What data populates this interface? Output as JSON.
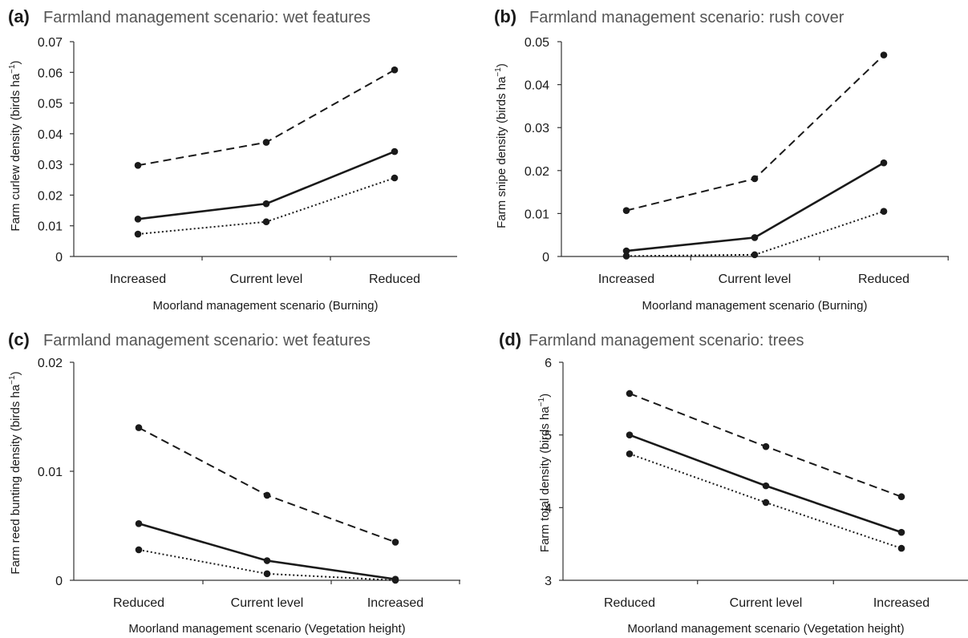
{
  "chart_data": [
    {
      "type": "line",
      "panel": "(a)",
      "title": "Farmland management scenario: wet features",
      "xlabel": "Moorland management scenario (Burning)",
      "ylabel": "Farm curlew density (birds ha",
      "ylabel_sup": "−1",
      "ylabel_close": ")",
      "categories": [
        "Increased",
        "Current level",
        "Reduced"
      ],
      "ylim": [
        0,
        0.07
      ],
      "yticks": [
        0,
        0.01,
        0.02,
        0.03,
        0.04,
        0.05,
        0.06,
        0.07
      ],
      "ytick_labels": [
        "0",
        "0.01",
        "0.02",
        "0.03",
        "0.04",
        "0.05",
        "0.06",
        "0.07"
      ],
      "series": [
        {
          "style": "dashed",
          "values": [
            0.0297,
            0.0372,
            0.0608
          ]
        },
        {
          "style": "solid",
          "values": [
            0.0122,
            0.0172,
            0.0342
          ]
        },
        {
          "style": "dotted",
          "values": [
            0.0073,
            0.0113,
            0.0256
          ]
        }
      ]
    },
    {
      "type": "line",
      "panel": "(b)",
      "title": "Farmland management scenario: rush cover",
      "xlabel": "Moorland management scenario (Burning)",
      "ylabel": "Farm snipe density (birds ha",
      "ylabel_sup": "−1",
      "ylabel_close": ")",
      "categories": [
        "Increased",
        "Current level",
        "Reduced"
      ],
      "ylim": [
        0,
        0.05
      ],
      "yticks": [
        0,
        0.01,
        0.02,
        0.03,
        0.04,
        0.05
      ],
      "ytick_labels": [
        "0",
        "0.01",
        "0.02",
        "0.03",
        "0.04",
        "0.05"
      ],
      "series": [
        {
          "style": "dashed",
          "values": [
            0.0107,
            0.0181,
            0.0469
          ]
        },
        {
          "style": "solid",
          "values": [
            0.0013,
            0.0044,
            0.0218
          ]
        },
        {
          "style": "dotted",
          "values": [
            0.0001,
            0.0004,
            0.0105
          ]
        }
      ]
    },
    {
      "type": "line",
      "panel": "(c)",
      "title": "Farmland management scenario: wet features",
      "xlabel": "Moorland management scenario (Vegetation height)",
      "ylabel": "Farm reed bunting density (birds ha",
      "ylabel_sup": "−1",
      "ylabel_close": ")",
      "categories": [
        "Reduced",
        "Current level",
        "Increased"
      ],
      "ylim": [
        0,
        0.02
      ],
      "yticks": [
        0,
        0.01,
        0.02
      ],
      "ytick_labels": [
        "0",
        "0.01",
        "0.02"
      ],
      "series": [
        {
          "style": "dashed",
          "values": [
            0.014,
            0.0078,
            0.0035
          ]
        },
        {
          "style": "solid",
          "values": [
            0.0052,
            0.0018,
            0.0001
          ]
        },
        {
          "style": "dotted",
          "values": [
            0.0028,
            0.0006,
            0.0
          ]
        }
      ]
    },
    {
      "type": "line",
      "panel": "(d)",
      "title": "Farmland management scenario: trees",
      "xlabel": "Moorland management scenario (Vegetation height)",
      "ylabel": "Farm total density (birds ha",
      "ylabel_sup": "−1",
      "ylabel_close": ")",
      "categories": [
        "Reduced",
        "Current level",
        "Increased"
      ],
      "ylim": [
        3,
        6
      ],
      "yticks": [
        3,
        4,
        5,
        6
      ],
      "ytick_labels": [
        "3",
        "4",
        "5",
        "6"
      ],
      "series": [
        {
          "style": "dashed",
          "values": [
            5.57,
            4.84,
            4.15
          ]
        },
        {
          "style": "solid",
          "values": [
            5.0,
            4.3,
            3.66
          ]
        },
        {
          "style": "dotted",
          "values": [
            4.74,
            4.07,
            3.44
          ]
        }
      ]
    }
  ],
  "colors": {
    "line": "#1a1a1a",
    "axis": "#333333",
    "title": "#555555"
  }
}
